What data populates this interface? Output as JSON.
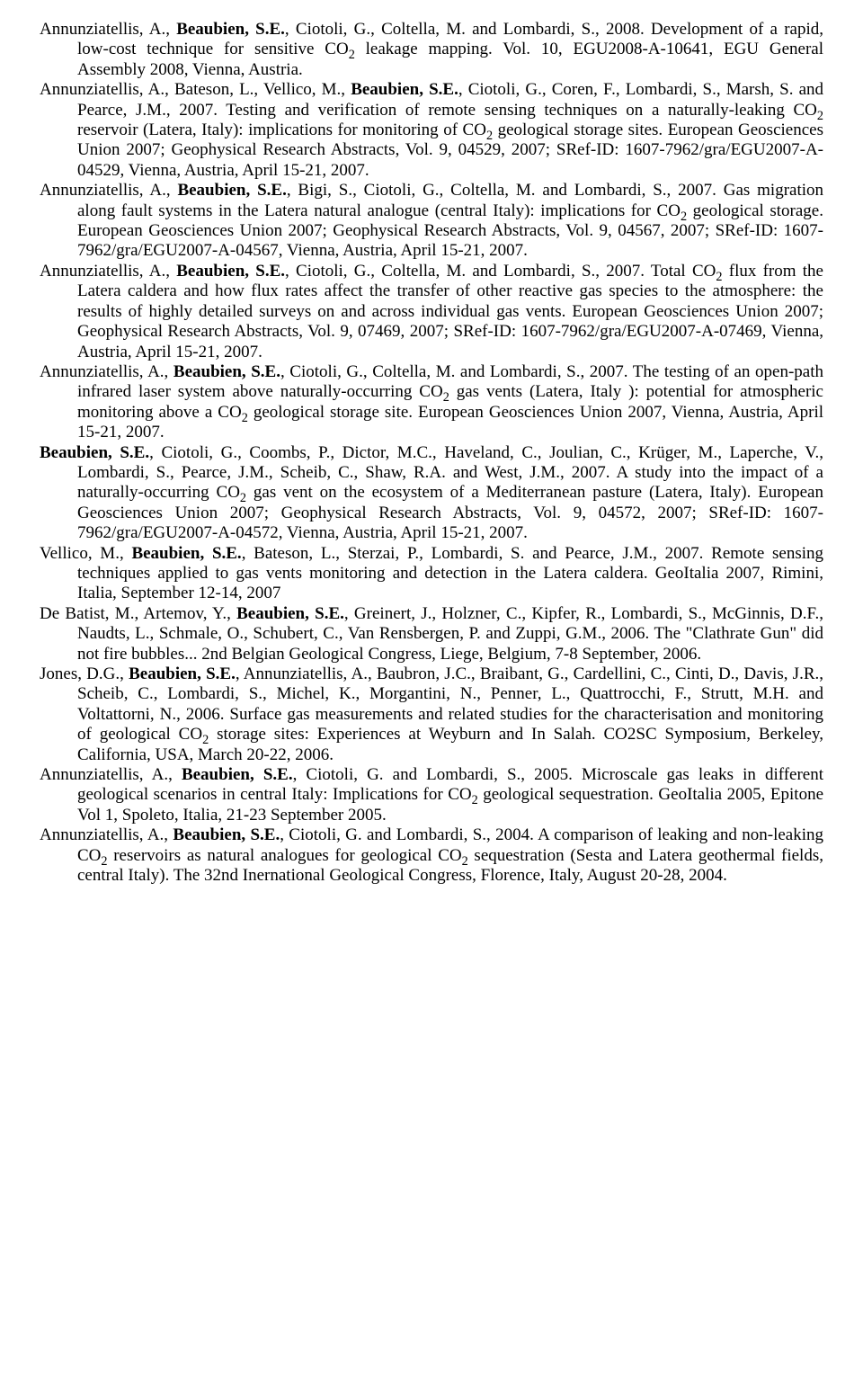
{
  "refs": [
    {
      "html": "Annunziatellis, A., <b>Beaubien, S.E.</b>, Ciotoli, G., Coltella, M. and Lombardi, S., 2008. Development of a rapid, low-cost technique for sensitive CO<sub>2</sub> leakage mapping. Vol. 10, EGU2008-A-10641, EGU General Assembly 2008, Vienna, Austria."
    },
    {
      "html": "Annunziatellis, A., Bateson, L., Vellico, M., <b>Beaubien, S.E.</b>, Ciotoli, G., Coren, F., Lombardi, S., Marsh, S. and Pearce, J.M., 2007. Testing and verification of remote sensing techniques on a naturally-leaking CO<sub>2</sub> reservoir (Latera, Italy): implications for monitoring of CO<sub>2</sub> geological storage sites. European Geosciences Union 2007; Geophysical Research Abstracts, Vol. 9, 04529, 2007; SRef-ID: 1607-7962/gra/EGU2007-A-04529, Vienna, Austria, April 15-21, 2007."
    },
    {
      "html": "Annunziatellis, A., <b>Beaubien, S.E.</b>, Bigi, S., Ciotoli, G., Coltella, M. and Lombardi, S., 2007. Gas migration along fault systems in the Latera natural analogue (central Italy): implications for CO<sub>2</sub> geological storage. European Geosciences Union 2007; Geophysical Research Abstracts, Vol. 9, 04567, 2007; SRef-ID: 1607-7962/gra/EGU2007-A-04567, Vienna, Austria, April 15-21, 2007."
    },
    {
      "html": "Annunziatellis, A., <b>Beaubien, S.E.</b>, Ciotoli, G., Coltella, M. and Lombardi, S., 2007. Total CO<sub>2</sub> flux from the Latera caldera and how flux rates affect the transfer of other reactive gas species to the atmosphere: the results of highly detailed surveys on and across individual gas vents. European Geosciences Union 2007; Geophysical Research Abstracts, Vol. 9, 07469, 2007; SRef-ID: 1607-7962/gra/EGU2007-A-07469, Vienna, Austria, April 15-21, 2007."
    },
    {
      "html": "Annunziatellis, A., <b>Beaubien, S.E.</b>, Ciotoli, G., Coltella, M. and Lombardi, S., 2007. The testing of an open-path infrared laser system above naturally-occurring CO<sub>2</sub> gas vents (Latera, Italy ): potential for atmospheric monitoring above a CO<sub>2</sub> geological storage site. European Geosciences Union 2007, Vienna, Austria, April 15-21, 2007."
    },
    {
      "html": "<b>Beaubien, S.E.</b>, Ciotoli, G., Coombs, P., Dictor, M.C., Haveland, C., Joulian, C., Krüger, M., Laperche, V., Lombardi, S., Pearce, J.M., Scheib, C., Shaw, R.A. and West, J.M., 2007. A study into the impact of a naturally-occurring CO<sub>2</sub> gas vent on the ecosystem of a Mediterranean pasture (Latera, Italy). European Geosciences Union 2007; Geophysical Research Abstracts, Vol. 9, 04572, 2007; SRef-ID: 1607-7962/gra/EGU2007-A-04572, Vienna, Austria, April 15-21, 2007."
    },
    {
      "html": "Vellico, M., <b>Beaubien, S.E.</b>, Bateson, L., Sterzai, P., Lombardi, S. and Pearce, J.M., 2007. Remote sensing techniques applied to gas vents monitoring and detection in the Latera caldera. GeoItalia 2007, Rimini, Italia, September 12-14, 2007"
    },
    {
      "html": "De Batist, M., Artemov, Y., <b>Beaubien, S.E.</b>, Greinert, J., Holzner, C., Kipfer, R., Lombardi, S., McGinnis, D.F., Naudts, L., Schmale, O., Schubert, C., Van Rensbergen, P. and Zuppi, G.M., 2006. The \"Clathrate Gun\" did not fire bubbles... 2nd Belgian Geological Congress, Liege, Belgium, 7-8 September, 2006."
    },
    {
      "html": "Jones, D.G., <b>Beaubien, S.E.</b>, Annunziatellis, A., Baubron, J.C., Braibant, G., Cardellini, C., Cinti, D., Davis, J.R., Scheib, C., Lombardi, S., Michel, K., Morgantini, N., Penner, L., Quattrocchi, F., Strutt, M.H. and Voltattorni, N., 2006. Surface gas measurements and related studies for the characterisation and monitoring of geological CO<sub>2</sub> storage sites: Experiences at Weyburn and In Salah. CO2SC Symposium, Berkeley, California, USA, March 20-22, 2006."
    },
    {
      "html": "Annunziatellis, A., <b>Beaubien, S.E.</b>, Ciotoli, G. and Lombardi, S., 2005. Microscale gas leaks in different geological scenarios in central Italy: Implications for CO<sub>2</sub> geological sequestration. GeoItalia 2005, Epitone Vol 1, Spoleto, Italia, 21-23 September 2005."
    },
    {
      "html": "Annunziatellis, A., <b>Beaubien, S.E.</b>, Ciotoli, G. and Lombardi, S., 2004. A comparison of leaking and non-leaking CO<sub>2</sub> reservoirs as natural analogues for geological CO<sub>2</sub> sequestration (Sesta and Latera geothermal fields, central Italy). The 32nd Inernational Geological Congress, Florence, Italy, August 20-28, 2004."
    }
  ]
}
